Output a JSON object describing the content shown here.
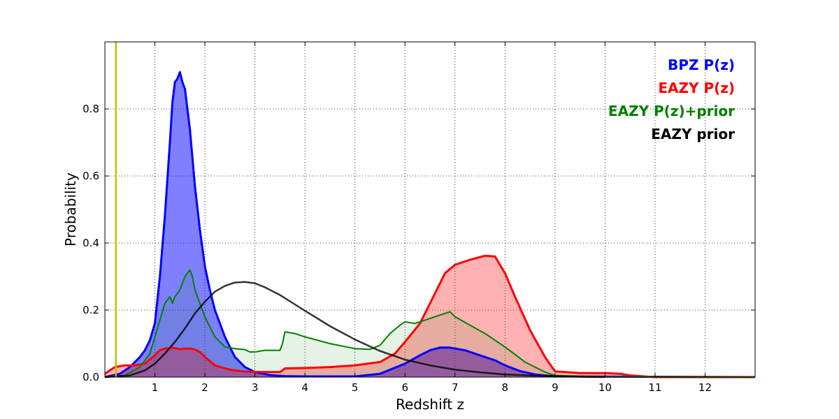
{
  "chart_data": {
    "type": "area",
    "xlabel": "Redshift z",
    "ylabel": "Probability",
    "xlim": [
      0,
      13
    ],
    "ylim": [
      0,
      1.0
    ],
    "xticks": [
      1,
      2,
      3,
      4,
      5,
      6,
      7,
      8,
      9,
      10,
      11,
      12
    ],
    "yticks": [
      0.0,
      0.2,
      0.4,
      0.6,
      0.8
    ],
    "grid": true,
    "legend_position": "top-right",
    "reference_line": {
      "x": 0.22,
      "color": "#bfbf00"
    },
    "series": [
      {
        "name": "BPZ P(z)",
        "color": "#0000ff",
        "fill": "#0000ff",
        "x": [
          0,
          0.3,
          0.5,
          0.7,
          0.8,
          0.9,
          1.0,
          1.1,
          1.2,
          1.3,
          1.35,
          1.4,
          1.45,
          1.5,
          1.55,
          1.6,
          1.7,
          1.8,
          1.9,
          2.0,
          2.1,
          2.2,
          2.4,
          2.6,
          2.8,
          3.0,
          3.3,
          3.6,
          4.0,
          5.0,
          5.5,
          6.0,
          6.3,
          6.5,
          6.7,
          6.9,
          7.2,
          7.5,
          7.8,
          8.0,
          8.3,
          8.6,
          9.0,
          13
        ],
        "y": [
          0.0,
          0.01,
          0.03,
          0.06,
          0.08,
          0.11,
          0.16,
          0.3,
          0.48,
          0.7,
          0.82,
          0.88,
          0.89,
          0.91,
          0.88,
          0.86,
          0.74,
          0.57,
          0.44,
          0.33,
          0.26,
          0.2,
          0.12,
          0.06,
          0.03,
          0.015,
          0.006,
          0.003,
          0.002,
          0.002,
          0.01,
          0.04,
          0.065,
          0.08,
          0.088,
          0.088,
          0.08,
          0.065,
          0.05,
          0.035,
          0.018,
          0.008,
          0.002,
          0.0
        ]
      },
      {
        "name": "EAZY P(z)",
        "color": "#ff0000",
        "fill": "#ff0000",
        "x": [
          0,
          0.2,
          0.4,
          0.6,
          0.8,
          1.0,
          1.1,
          1.2,
          1.35,
          1.5,
          1.6,
          1.7,
          1.8,
          1.9,
          2.0,
          2.2,
          2.5,
          2.8,
          3.2,
          3.5,
          3.55,
          3.6,
          4.0,
          4.5,
          5.0,
          5.5,
          5.8,
          6.0,
          6.3,
          6.6,
          6.8,
          7.0,
          7.3,
          7.6,
          7.8,
          8.0,
          8.2,
          8.5,
          8.8,
          9.0,
          9.5,
          10.0,
          10.3,
          10.5,
          11.0,
          13
        ],
        "y": [
          0.01,
          0.03,
          0.035,
          0.035,
          0.04,
          0.065,
          0.08,
          0.085,
          0.088,
          0.083,
          0.085,
          0.085,
          0.082,
          0.075,
          0.06,
          0.035,
          0.022,
          0.016,
          0.015,
          0.015,
          0.02,
          0.026,
          0.027,
          0.03,
          0.035,
          0.045,
          0.07,
          0.105,
          0.16,
          0.25,
          0.31,
          0.335,
          0.35,
          0.362,
          0.36,
          0.31,
          0.24,
          0.14,
          0.06,
          0.017,
          0.012,
          0.012,
          0.01,
          0.005,
          0.0,
          0.0
        ]
      },
      {
        "name": "EAZY P(z)+prior",
        "color": "#008000",
        "fill": "#008000",
        "x": [
          0,
          0.4,
          0.7,
          0.9,
          1.0,
          1.1,
          1.2,
          1.3,
          1.35,
          1.4,
          1.45,
          1.5,
          1.6,
          1.65,
          1.7,
          1.75,
          1.8,
          1.9,
          2.0,
          2.1,
          2.2,
          2.4,
          2.6,
          2.8,
          2.9,
          3.0,
          3.2,
          3.4,
          3.5,
          3.55,
          3.6,
          3.8,
          4.0,
          4.5,
          5.0,
          5.3,
          5.5,
          5.7,
          5.9,
          6.0,
          6.2,
          6.4,
          6.6,
          6.8,
          6.9,
          7.0,
          7.3,
          7.6,
          8.0,
          8.4,
          8.8,
          9.0,
          10.0,
          13
        ],
        "y": [
          0.0,
          0.005,
          0.03,
          0.07,
          0.12,
          0.17,
          0.22,
          0.24,
          0.22,
          0.24,
          0.25,
          0.26,
          0.3,
          0.31,
          0.32,
          0.3,
          0.26,
          0.22,
          0.18,
          0.15,
          0.12,
          0.09,
          0.085,
          0.082,
          0.075,
          0.075,
          0.08,
          0.08,
          0.08,
          0.1,
          0.135,
          0.13,
          0.12,
          0.1,
          0.085,
          0.083,
          0.095,
          0.13,
          0.155,
          0.165,
          0.16,
          0.17,
          0.18,
          0.19,
          0.195,
          0.18,
          0.155,
          0.13,
          0.09,
          0.045,
          0.015,
          0.005,
          0.001,
          0.0
        ]
      },
      {
        "name": "EAZY prior",
        "color": "#000000",
        "fill": "none",
        "x": [
          0,
          0.5,
          0.8,
          1.0,
          1.2,
          1.4,
          1.6,
          1.8,
          2.0,
          2.2,
          2.4,
          2.6,
          2.8,
          3.0,
          3.2,
          3.5,
          4.0,
          4.5,
          5.0,
          5.5,
          6.0,
          6.5,
          7.0,
          7.5,
          8.0,
          8.5,
          9.0,
          9.5,
          10.0
        ],
        "y": [
          0.0,
          0.005,
          0.02,
          0.04,
          0.07,
          0.105,
          0.145,
          0.19,
          0.225,
          0.255,
          0.272,
          0.282,
          0.284,
          0.28,
          0.268,
          0.245,
          0.198,
          0.152,
          0.112,
          0.078,
          0.052,
          0.035,
          0.022,
          0.014,
          0.008,
          0.005,
          0.003,
          0.001,
          0.0
        ]
      }
    ]
  }
}
